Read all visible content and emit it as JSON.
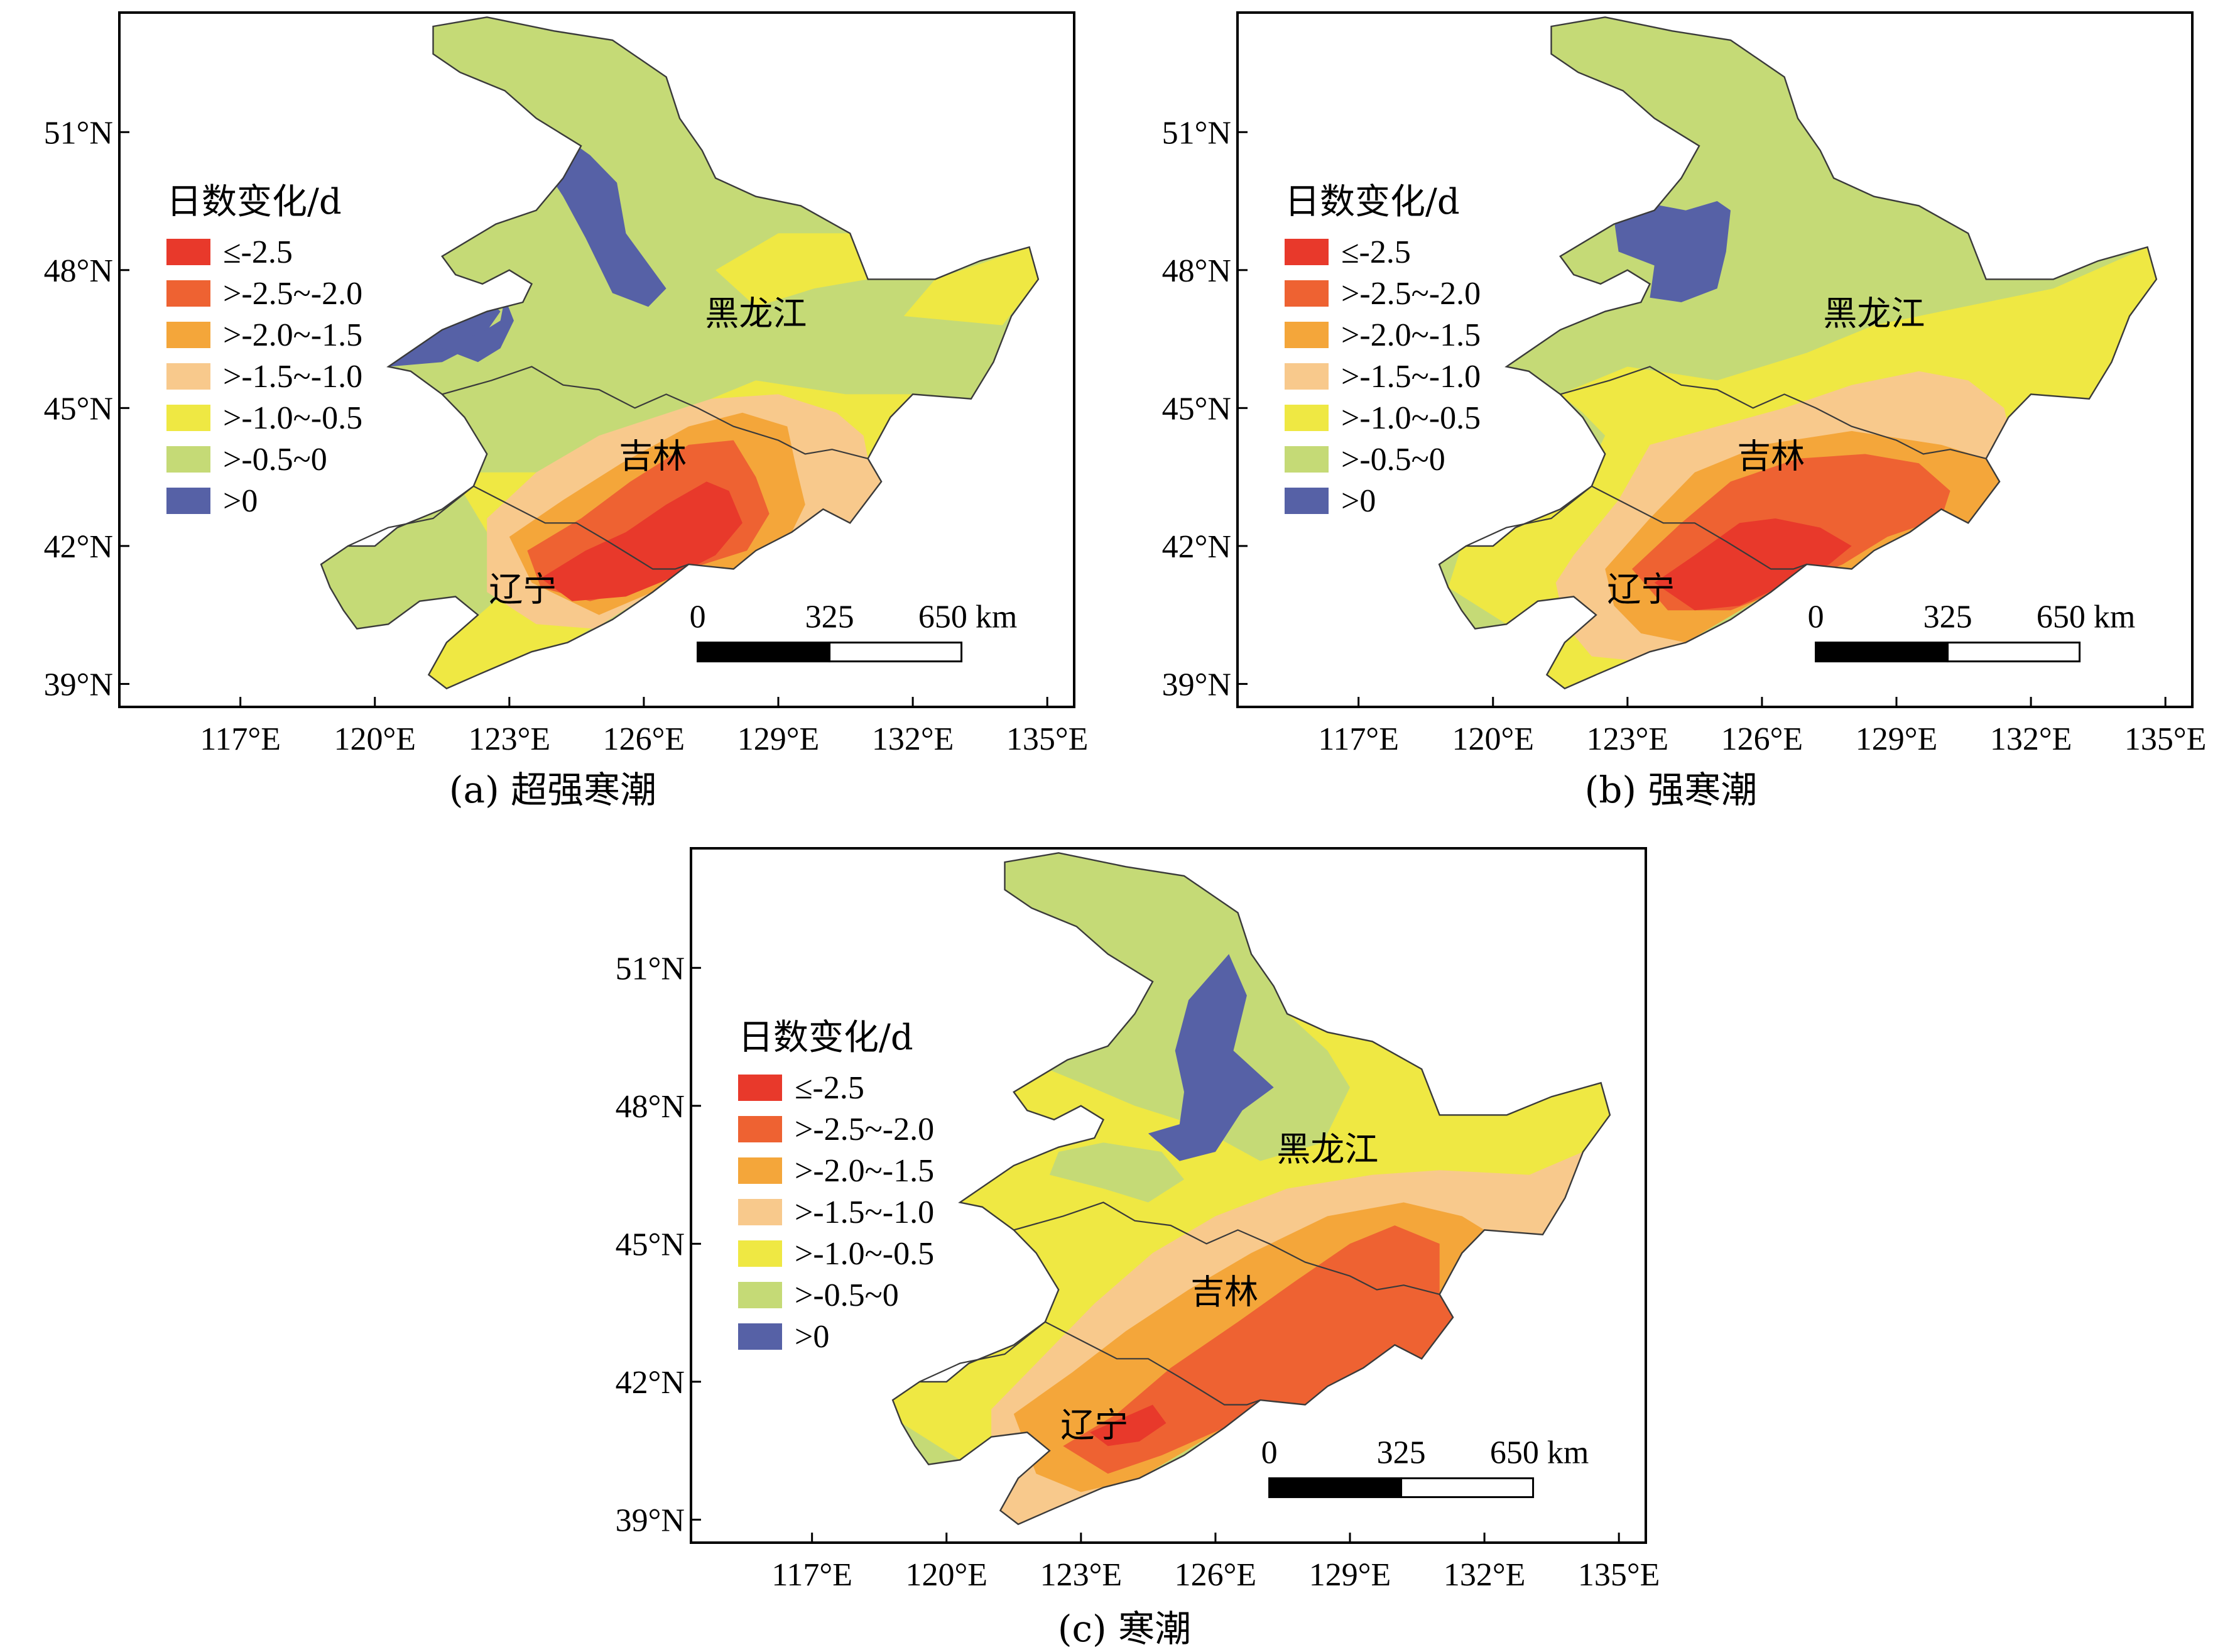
{
  "figure": {
    "panels": [
      {
        "id": "a",
        "caption": "(a) 超强寒潮",
        "legend_title": "日数变化/d",
        "provinces": {
          "heilongjiang": "黑龙江",
          "jilin": "吉林",
          "liaoning": "辽宁"
        },
        "scale": {
          "labels": [
            "0",
            "325",
            "650 km"
          ]
        }
      },
      {
        "id": "b",
        "caption": "(b) 强寒潮",
        "legend_title": "日数变化/d",
        "provinces": {
          "heilongjiang": "黑龙江",
          "jilin": "吉林",
          "liaoning": "辽宁"
        },
        "scale": {
          "labels": [
            "0",
            "325",
            "650 km"
          ]
        }
      },
      {
        "id": "c",
        "caption": "(c) 寒潮",
        "legend_title": "日数变化/d",
        "provinces": {
          "heilongjiang": "黑龙江",
          "jilin": "吉林",
          "liaoning": "辽宁"
        },
        "scale": {
          "labels": [
            "0",
            "325",
            "650 km"
          ]
        }
      }
    ],
    "legend": [
      {
        "label": "≤-2.5",
        "color": "#e8392b"
      },
      {
        "label": ">-2.5~-2.0",
        "color": "#ee6232"
      },
      {
        "label": ">-2.0~-1.5",
        "color": "#f4a63a"
      },
      {
        "label": ">-1.5~-1.0",
        "color": "#f8c98c"
      },
      {
        "label": ">-1.0~-0.5",
        "color": "#efe843"
      },
      {
        "label": ">-0.5~0",
        "color": "#c5da76"
      },
      {
        "label": ">0",
        "color": "#5661a6"
      }
    ],
    "axes": {
      "x_ticks": [
        "117°E",
        "120°E",
        "123°E",
        "126°E",
        "129°E",
        "132°E",
        "135°E"
      ],
      "y_ticks": [
        "51°N",
        "48°N",
        "45°N",
        "42°N",
        "39°N"
      ]
    }
  }
}
